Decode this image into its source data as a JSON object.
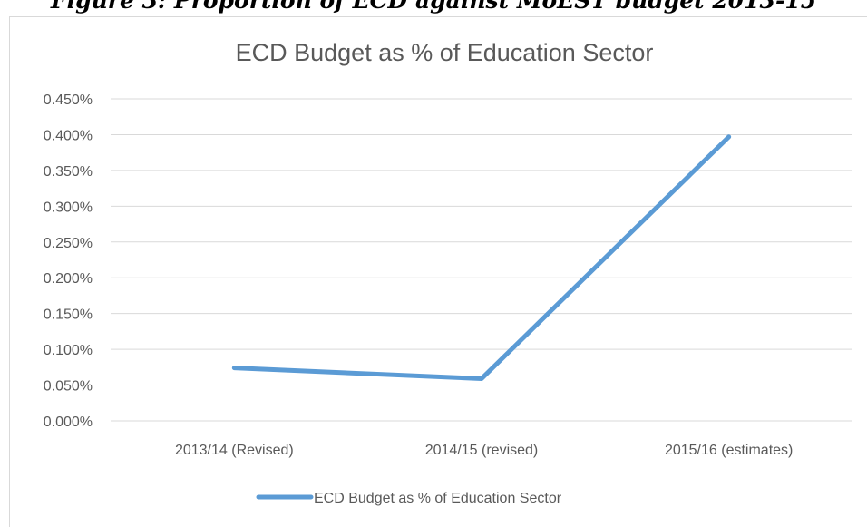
{
  "caption": "Figure 3: Proportion of ECD against MoEST budget 2013-15",
  "chart_data": {
    "type": "line",
    "title": "ECD Budget as % of Education Sector",
    "categories": [
      "2013/14 (Revised)",
      "2014/15 (revised)",
      "2015/16 (estimates)"
    ],
    "series": [
      {
        "name": "ECD Budget as % of Education Sector",
        "values": [
          0.074,
          0.059,
          0.397
        ]
      }
    ],
    "y_ticks": [
      "0.000%",
      "0.050%",
      "0.100%",
      "0.150%",
      "0.200%",
      "0.250%",
      "0.300%",
      "0.350%",
      "0.400%",
      "0.450%"
    ],
    "ylim": [
      0,
      0.45
    ],
    "y_unit": "%",
    "grid": true,
    "legend_position": "bottom",
    "colors": {
      "series": "#5b9bd5",
      "grid": "#d9d9d9",
      "text": "#595959"
    }
  }
}
